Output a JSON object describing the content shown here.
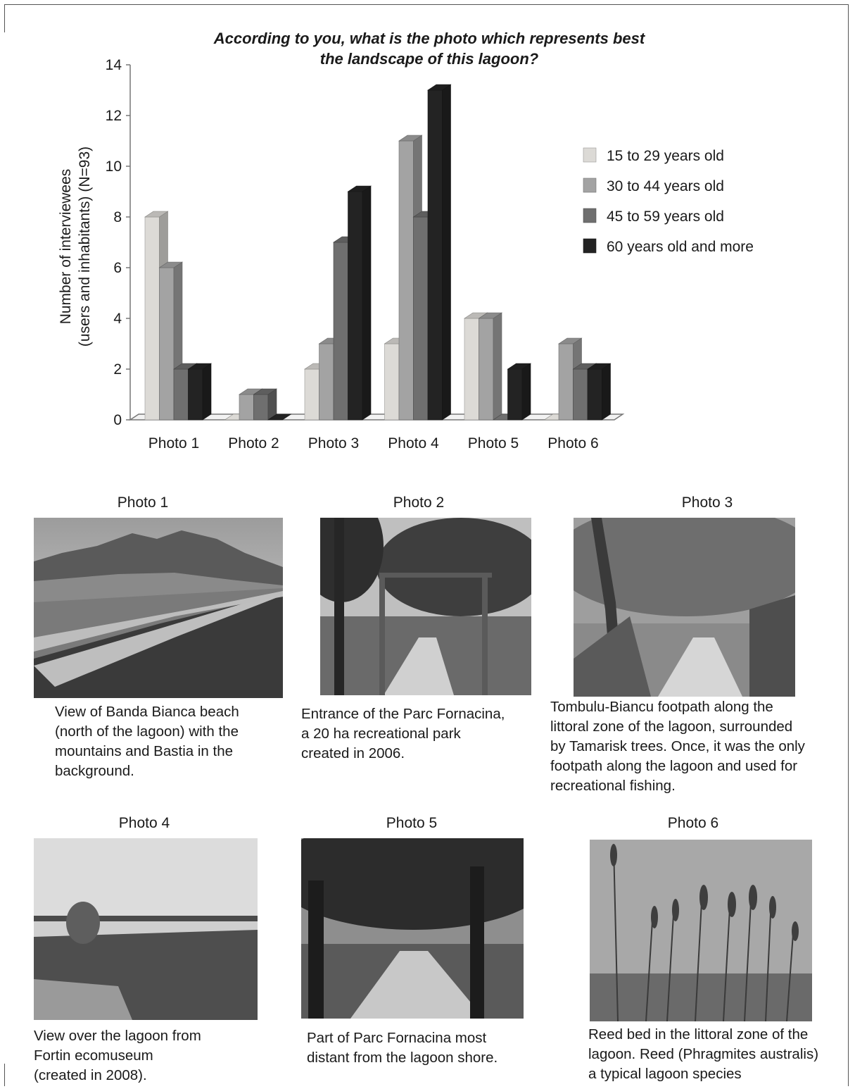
{
  "chart_data": {
    "type": "bar",
    "title": "According to you, what is the photo which represents best the landscape of this lagoon?",
    "title_lines": [
      "According to you, what is the photo which represents best",
      "the landscape of this lagoon?"
    ],
    "ylabel_lines": [
      "Number of interviewees",
      "(users and inhabitants) (N=93)"
    ],
    "xlabel": "",
    "ylim": [
      0,
      14
    ],
    "yticks": [
      "0",
      "2",
      "4",
      "6",
      "8",
      "10",
      "12",
      "14"
    ],
    "categories": [
      "Photo 1",
      "Photo 2",
      "Photo 3",
      "Photo 4",
      "Photo 5",
      "Photo 6"
    ],
    "series": [
      {
        "name": "15 to 29 years old",
        "color": "#dcdad6",
        "values": [
          8,
          0,
          2,
          3,
          4,
          0
        ]
      },
      {
        "name": "30 to 44 years old",
        "color": "#a3a3a3",
        "values": [
          6,
          1,
          3,
          11,
          4,
          3
        ]
      },
      {
        "name": "45 to 59 years old",
        "color": "#6f6f6f",
        "values": [
          2,
          1,
          7,
          8,
          0,
          2
        ]
      },
      {
        "name": "60 years old and more",
        "color": "#232323",
        "values": [
          2,
          0,
          9,
          13,
          2,
          2
        ]
      }
    ],
    "legend_position": "right",
    "grid": false,
    "style": "3d"
  },
  "photos": [
    {
      "title": "Photo 1",
      "scene": "beach",
      "caption_lines": [
        "View of Banda Bianca beach",
        "(north of the lagoon) with the",
        "mountains and Bastia in the",
        "background."
      ]
    },
    {
      "title": "Photo 2",
      "scene": "park-gate",
      "caption_lines": [
        "Entrance of the Parc Fornacina,",
        "a 20 ha recreational park",
        "created in 2006."
      ]
    },
    {
      "title": "Photo 3",
      "scene": "footpath",
      "caption_lines": [
        "Tombulu-Biancu footpath along the",
        "littoral zone of the lagoon, surrounded",
        "by Tamarisk trees. Once, it was the only",
        "footpath along the lagoon and used for",
        "recreational fishing."
      ]
    },
    {
      "title": "Photo 4",
      "scene": "lagoon-view",
      "caption_lines": [
        "View over the lagoon from",
        "Fortin ecomuseum",
        "(created in 2008)."
      ]
    },
    {
      "title": "Photo 5",
      "scene": "park-path",
      "caption_lines": [
        "Part of Parc Fornacina most",
        "distant from the lagoon shore."
      ]
    },
    {
      "title": "Photo 6",
      "scene": "reeds",
      "caption_lines": [
        "Reed bed in the littoral zone of the",
        "lagoon. Reed (Phragmites australis)",
        "a typical lagoon species"
      ]
    }
  ]
}
